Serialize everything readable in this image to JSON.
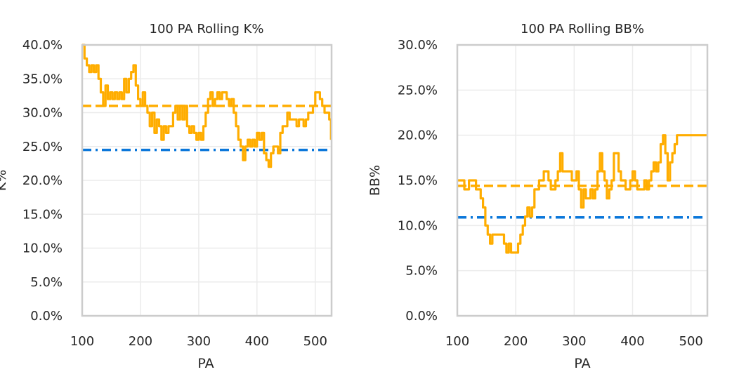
{
  "colors": {
    "rolling": "#FFAD00",
    "mean": "#FFAD00",
    "league": "#0B77DA"
  },
  "chart_data": [
    {
      "type": "line",
      "title": "100 PA Rolling K%",
      "xlabel": "PA",
      "ylabel": "K%",
      "xlim": [
        100,
        528
      ],
      "ylim": [
        0,
        0.4
      ],
      "xticks": [
        100,
        200,
        300,
        400,
        500
      ],
      "yticks": [
        0,
        0.05,
        0.1,
        0.15,
        0.2,
        0.25,
        0.3,
        0.35,
        0.4
      ],
      "xtick_labels": [
        "100",
        "200",
        "300",
        "400",
        "500"
      ],
      "ytick_labels": [
        "0.0%",
        "5.0%",
        "10.0%",
        "15.0%",
        "20.0%",
        "25.0%",
        "30.0%",
        "35.0%",
        "40.0%"
      ],
      "grid": true,
      "reference_lines": {
        "mean_dashed": 0.31,
        "league_dashdot": 0.245
      },
      "series": [
        {
          "x": [
            100,
            104,
            108,
            112,
            116,
            120,
            124,
            128,
            132,
            136,
            140,
            144,
            148,
            152,
            156,
            160,
            164,
            168,
            172,
            176,
            180,
            184,
            188,
            192,
            196,
            200,
            204,
            208,
            212,
            216,
            220,
            224,
            228,
            232,
            236,
            240,
            244,
            248,
            252,
            256,
            260,
            264,
            268,
            272,
            276,
            280,
            284,
            288,
            292,
            296,
            300,
            304,
            308,
            312,
            316,
            320,
            324,
            328,
            332,
            336,
            340,
            344,
            348,
            352,
            356,
            360,
            364,
            368,
            372,
            376,
            380,
            384,
            388,
            392,
            396,
            400,
            404,
            408,
            412,
            416,
            420,
            424,
            428,
            432,
            436,
            440,
            444,
            448,
            452,
            456,
            460,
            464,
            468,
            472,
            476,
            480,
            484,
            488,
            492,
            496,
            500,
            504,
            508,
            512,
            516,
            520,
            524,
            527
          ],
          "y": [
            0.4,
            0.38,
            0.37,
            0.36,
            0.37,
            0.36,
            0.37,
            0.35,
            0.33,
            0.31,
            0.34,
            0.32,
            0.33,
            0.32,
            0.33,
            0.32,
            0.33,
            0.32,
            0.35,
            0.33,
            0.35,
            0.36,
            0.37,
            0.34,
            0.32,
            0.31,
            0.33,
            0.31,
            0.3,
            0.28,
            0.3,
            0.27,
            0.29,
            0.28,
            0.26,
            0.28,
            0.27,
            0.28,
            0.28,
            0.3,
            0.31,
            0.29,
            0.31,
            0.29,
            0.31,
            0.28,
            0.27,
            0.28,
            0.27,
            0.26,
            0.27,
            0.26,
            0.28,
            0.3,
            0.32,
            0.33,
            0.31,
            0.32,
            0.33,
            0.32,
            0.33,
            0.33,
            0.32,
            0.31,
            0.32,
            0.3,
            0.28,
            0.26,
            0.25,
            0.23,
            0.25,
            0.26,
            0.25,
            0.26,
            0.25,
            0.27,
            0.26,
            0.27,
            0.24,
            0.23,
            0.22,
            0.24,
            0.25,
            0.25,
            0.24,
            0.27,
            0.28,
            0.28,
            0.3,
            0.29,
            0.29,
            0.29,
            0.28,
            0.29,
            0.29,
            0.28,
            0.29,
            0.3,
            0.3,
            0.31,
            0.33,
            0.33,
            0.32,
            0.31,
            0.3,
            0.3,
            0.29,
            0.26
          ]
        }
      ]
    },
    {
      "type": "line",
      "title": "100 PA Rolling BB%",
      "xlabel": "PA",
      "ylabel": "BB%",
      "xlim": [
        100,
        528
      ],
      "ylim": [
        0,
        0.3
      ],
      "xticks": [
        100,
        200,
        300,
        400,
        500
      ],
      "yticks": [
        0,
        0.05,
        0.1,
        0.15,
        0.2,
        0.25,
        0.3
      ],
      "xtick_labels": [
        "100",
        "200",
        "300",
        "400",
        "500"
      ],
      "ytick_labels": [
        "0.0%",
        "5.0%",
        "10.0%",
        "15.0%",
        "20.0%",
        "25.0%",
        "30.0%"
      ],
      "grid": true,
      "reference_lines": {
        "mean_dashed": 0.144,
        "league_dashdot": 0.109
      },
      "series": [
        {
          "x": [
            100,
            108,
            112,
            120,
            124,
            132,
            136,
            140,
            144,
            148,
            152,
            156,
            160,
            164,
            168,
            172,
            176,
            180,
            184,
            188,
            192,
            196,
            200,
            204,
            208,
            212,
            216,
            220,
            224,
            228,
            232,
            236,
            240,
            244,
            248,
            252,
            256,
            260,
            264,
            268,
            272,
            276,
            280,
            284,
            288,
            292,
            296,
            300,
            304,
            308,
            312,
            316,
            320,
            324,
            328,
            332,
            336,
            340,
            344,
            348,
            352,
            356,
            360,
            364,
            368,
            372,
            376,
            380,
            384,
            388,
            392,
            396,
            400,
            404,
            408,
            412,
            416,
            420,
            424,
            428,
            432,
            436,
            440,
            444,
            448,
            452,
            456,
            460,
            464,
            468,
            472,
            476,
            480,
            484,
            488,
            492,
            496,
            500,
            504,
            508,
            512,
            516,
            520,
            527
          ],
          "y": [
            0.15,
            0.15,
            0.14,
            0.15,
            0.15,
            0.14,
            0.14,
            0.13,
            0.12,
            0.1,
            0.09,
            0.08,
            0.09,
            0.09,
            0.09,
            0.09,
            0.09,
            0.08,
            0.07,
            0.08,
            0.07,
            0.07,
            0.07,
            0.08,
            0.09,
            0.1,
            0.11,
            0.12,
            0.11,
            0.12,
            0.14,
            0.14,
            0.15,
            0.15,
            0.16,
            0.16,
            0.15,
            0.14,
            0.14,
            0.15,
            0.16,
            0.18,
            0.16,
            0.16,
            0.16,
            0.16,
            0.15,
            0.15,
            0.16,
            0.14,
            0.12,
            0.14,
            0.13,
            0.13,
            0.14,
            0.13,
            0.14,
            0.16,
            0.18,
            0.16,
            0.15,
            0.13,
            0.14,
            0.15,
            0.18,
            0.18,
            0.16,
            0.15,
            0.15,
            0.14,
            0.14,
            0.15,
            0.16,
            0.15,
            0.14,
            0.14,
            0.14,
            0.15,
            0.14,
            0.15,
            0.16,
            0.17,
            0.16,
            0.17,
            0.19,
            0.2,
            0.18,
            0.15,
            0.17,
            0.18,
            0.19,
            0.2,
            0.2,
            0.2,
            0.2,
            0.2,
            0.2,
            0.2,
            0.2,
            0.2,
            0.2,
            0.2,
            0.2,
            0.2
          ]
        }
      ]
    }
  ]
}
